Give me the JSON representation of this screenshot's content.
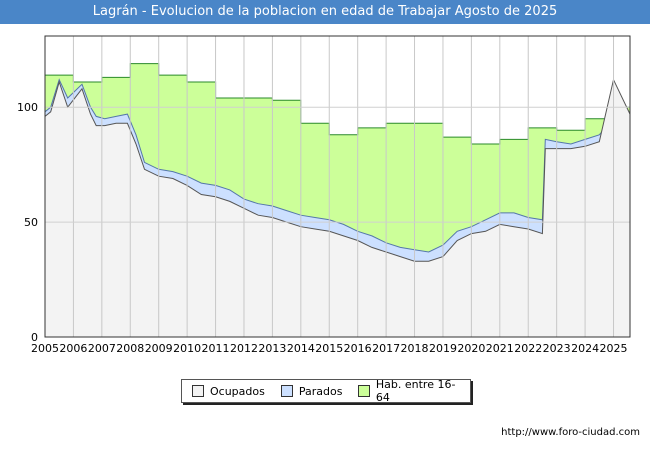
{
  "chart_data": {
    "type": "area",
    "title": "Lagrán - Evolucion de la poblacion en edad de Trabajar Agosto de 2025",
    "x_ticks": [
      "2005",
      "2006",
      "2007",
      "2008",
      "2009",
      "2010",
      "2011",
      "2012",
      "2013",
      "2014",
      "2015",
      "2016",
      "2017",
      "2018",
      "2019",
      "2020",
      "2021",
      "2022",
      "2023",
      "2024",
      "2025"
    ],
    "y_ticks": [
      0,
      50,
      100
    ],
    "xlim": [
      2005,
      2025.58
    ],
    "ylim": [
      0,
      131
    ],
    "grid": true,
    "legend_position": "bottom",
    "series": [
      {
        "name": "Hab. entre 16-64",
        "color": "#ccff99",
        "edge": "#2a8a2a",
        "step": true,
        "x": [
          2005,
          2006,
          2007,
          2008,
          2009,
          2010,
          2011,
          2012,
          2013,
          2014,
          2015,
          2016,
          2017,
          2018,
          2019,
          2020,
          2021,
          2022,
          2023,
          2024,
          2025,
          2025.58
        ],
        "values": [
          114,
          111,
          113,
          119,
          114,
          111,
          104,
          104,
          103,
          93,
          88,
          91,
          93,
          93,
          87,
          84,
          86,
          91,
          90,
          95,
          100,
          100
        ]
      },
      {
        "name": "Parados",
        "color": "#cce0ff",
        "edge": "#5577aa",
        "x": [
          2005,
          2005.2,
          2005.5,
          2005.8,
          2006.3,
          2006.6,
          2006.8,
          2007.1,
          2007.5,
          2007.9,
          2008.2,
          2008.5,
          2009,
          2009.5,
          2010,
          2010.5,
          2011,
          2011.5,
          2012,
          2012.5,
          2013,
          2013.5,
          2014,
          2014.5,
          2015,
          2015.5,
          2016,
          2016.5,
          2017,
          2017.5,
          2018,
          2018.5,
          2019,
          2019.5,
          2020,
          2020.5,
          2021,
          2021.5,
          2022,
          2022.5,
          2022.6,
          2023,
          2023.5,
          2024,
          2024.5,
          2025,
          2025.58
        ],
        "values": [
          98,
          100,
          112,
          104,
          110,
          100,
          96,
          95,
          96,
          97,
          88,
          76,
          73,
          72,
          70,
          67,
          66,
          64,
          60,
          58,
          57,
          55,
          53,
          52,
          51,
          49,
          46,
          44,
          41,
          39,
          38,
          37,
          40,
          46,
          48,
          51,
          54,
          54,
          52,
          51,
          86,
          85,
          84,
          86,
          88,
          95,
          98
        ]
      },
      {
        "name": "Ocupados",
        "color": "#f3f3f3",
        "edge": "#555555",
        "x": [
          2005,
          2005.2,
          2005.5,
          2005.8,
          2006.3,
          2006.6,
          2006.8,
          2007.1,
          2007.5,
          2007.9,
          2008.2,
          2008.5,
          2009,
          2009.5,
          2010,
          2010.5,
          2011,
          2011.5,
          2012,
          2012.5,
          2013,
          2013.5,
          2014,
          2014.5,
          2015,
          2015.5,
          2016,
          2016.5,
          2017,
          2017.5,
          2018,
          2018.5,
          2019,
          2019.5,
          2020,
          2020.5,
          2021,
          2021.5,
          2022,
          2022.5,
          2022.6,
          2023,
          2023.5,
          2024,
          2024.5,
          2025,
          2025.58
        ],
        "values": [
          96,
          98,
          111,
          100,
          108,
          97,
          92,
          92,
          93,
          93,
          84,
          73,
          70,
          69,
          66,
          62,
          61,
          59,
          56,
          53,
          52,
          50,
          48,
          47,
          46,
          44,
          42,
          39,
          37,
          35,
          33,
          33,
          35,
          42,
          45,
          46,
          49,
          48,
          47,
          45,
          82,
          82,
          82,
          83,
          85,
          112,
          97
        ]
      }
    ]
  },
  "legend": {
    "ocupados": "Ocupados",
    "parados": "Parados",
    "hab": "Hab. entre 16-64"
  },
  "source_text": "http://www.foro-ciudad.com"
}
